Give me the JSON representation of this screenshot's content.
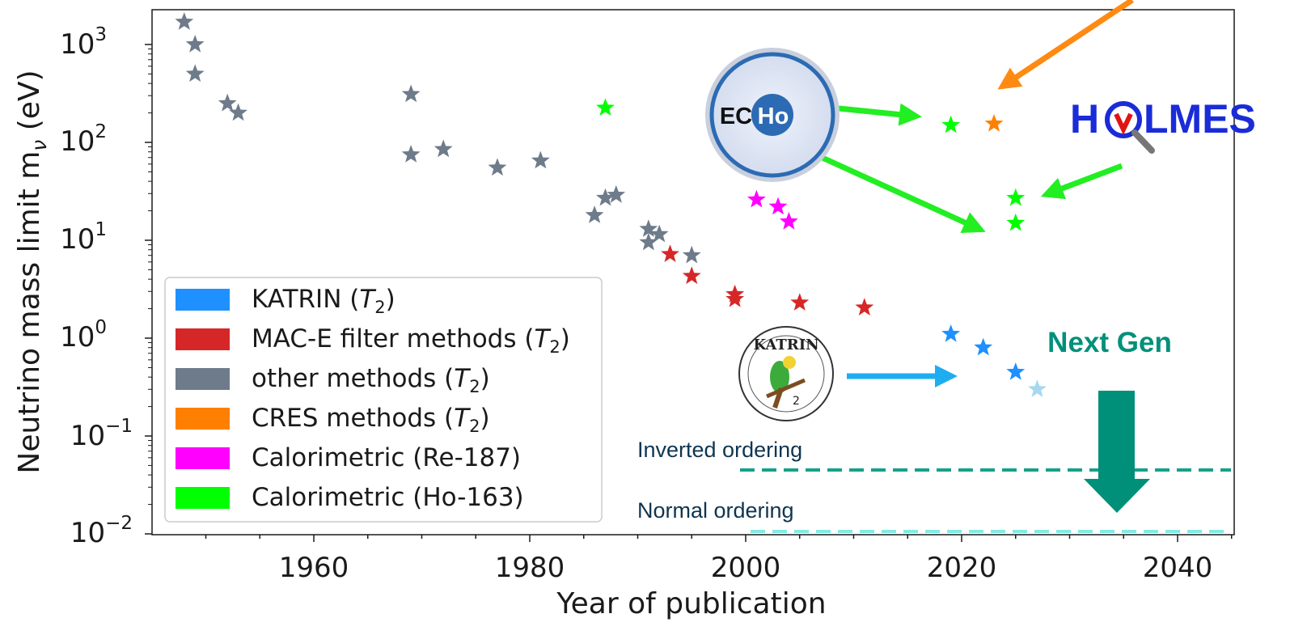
{
  "chart_data": {
    "type": "scatter",
    "xlabel": "Year of publication",
    "ylabel": "Neutrino mass limit m",
    "ylabel_sub": "ν",
    "ylabel_unit": " (eV)",
    "x_ticks": [
      "1960",
      "1980",
      "2000",
      "2020",
      "2040"
    ],
    "y_ticks": [
      {
        "base": "10",
        "exp": "3"
      },
      {
        "base": "10",
        "exp": "2"
      },
      {
        "base": "10",
        "exp": "1"
      },
      {
        "base": "10",
        "exp": "0"
      },
      {
        "base": "10",
        "exp": "−1"
      },
      {
        "base": "10",
        "exp": "−2"
      }
    ],
    "xlim": [
      1945,
      2050
    ],
    "ylim": [
      0.01,
      2000
    ],
    "y_scale": "log",
    "grid": false,
    "legend_position": "lower-left",
    "series": [
      {
        "name": "KATRIN",
        "name_math": "T",
        "name_math_sub": "2",
        "color": "#1e90ff",
        "points": [
          [
            2019,
            1.1
          ],
          [
            2022,
            0.8
          ],
          [
            2025,
            0.45
          ]
        ]
      },
      {
        "name": "MAC-E filter methods",
        "name_math": "T",
        "name_math_sub": "2",
        "color": "#d62728",
        "points": [
          [
            1993,
            7.2
          ],
          [
            1995,
            4.3
          ],
          [
            1999,
            2.8
          ],
          [
            1999,
            2.5
          ],
          [
            2005,
            2.3
          ],
          [
            2011,
            2.05
          ]
        ]
      },
      {
        "name": "other methods",
        "name_math": "T",
        "name_math_sub": "2",
        "color": "#6e7b8b",
        "points": [
          [
            1948,
            1700
          ],
          [
            1949,
            1000
          ],
          [
            1949,
            500
          ],
          [
            1952,
            250
          ],
          [
            1953,
            200
          ],
          [
            1969,
            310
          ],
          [
            1969,
            75
          ],
          [
            1972,
            85
          ],
          [
            1977,
            55
          ],
          [
            1981,
            65
          ],
          [
            1986,
            18
          ],
          [
            1987,
            27
          ],
          [
            1988,
            29
          ],
          [
            1991,
            13
          ],
          [
            1991,
            9.5
          ],
          [
            1992,
            11.5
          ],
          [
            1995,
            7
          ]
        ]
      },
      {
        "name": "CRES methods",
        "name_math": "T",
        "name_math_sub": "2",
        "color": "#ff8000",
        "points": [
          [
            2023,
            155
          ]
        ]
      },
      {
        "name": "Calorimetric (Re-187)",
        "color": "#ff00ff",
        "points": [
          [
            2001,
            26
          ],
          [
            2003,
            22
          ],
          [
            2004,
            15.5
          ]
        ]
      },
      {
        "name": "Calorimetric (Ho-163)",
        "color": "#00ff00",
        "points": [
          [
            1987,
            225
          ],
          [
            2019,
            150
          ],
          [
            2025,
            27
          ],
          [
            2025,
            15
          ]
        ]
      }
    ],
    "projection": {
      "color": "#a6d8ee",
      "points": [
        [
          2027,
          0.3
        ]
      ]
    },
    "reference_lines": [
      {
        "label": "Inverted ordering",
        "y": 0.048,
        "color": "#16a08a"
      },
      {
        "label": "Normal ordering",
        "y": 0.011,
        "color": "#82ebe3"
      }
    ],
    "annotations": {
      "next_gen": "Next Gen",
      "echo_logo_left": "EC",
      "echo_logo_right": "Ho",
      "holmes_logo_left": "H",
      "holmes_logo_right": "LMES",
      "katrin_logo": "KATRIN",
      "katrin_logo_sub": "2"
    },
    "colors": {
      "echo_arrow": "#22ee22",
      "katrin_arrow": "#1eaef0",
      "cres_arrow": "#ff8a12",
      "next_gen": "#009079"
    }
  }
}
